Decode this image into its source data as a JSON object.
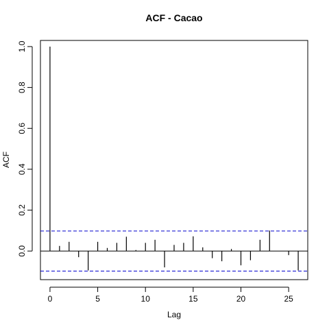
{
  "chart_data": {
    "type": "bar",
    "title": "ACF - Cacao",
    "xlabel": "Lag",
    "ylabel": "ACF",
    "xlim": [
      -1,
      27
    ],
    "ylim": [
      -0.14,
      1.03
    ],
    "x_ticks": [
      0,
      5,
      10,
      15,
      20,
      25
    ],
    "y_ticks": [
      0.0,
      0.2,
      0.4,
      0.6,
      0.8,
      1.0
    ],
    "x_tick_labels": [
      "0",
      "5",
      "10",
      "15",
      "20",
      "25"
    ],
    "y_tick_labels": [
      "0.0",
      "0.2",
      "0.4",
      "0.6",
      "0.8",
      "1.0"
    ],
    "lags": [
      0,
      1,
      2,
      3,
      4,
      5,
      6,
      7,
      8,
      9,
      10,
      11,
      12,
      13,
      14,
      15,
      16,
      17,
      18,
      19,
      20,
      21,
      22,
      23,
      24,
      25,
      26
    ],
    "values": [
      1.0,
      0.025,
      0.045,
      -0.03,
      -0.095,
      0.045,
      0.015,
      0.04,
      0.07,
      0.005,
      0.04,
      0.055,
      -0.08,
      0.03,
      0.04,
      0.072,
      0.018,
      -0.035,
      -0.05,
      0.01,
      -0.07,
      -0.045,
      0.055,
      0.1,
      0.0,
      -0.02,
      -0.095
    ],
    "confidence_bound": 0.098,
    "confidence_color": "#0000cd",
    "grid": false,
    "legend": "none"
  }
}
